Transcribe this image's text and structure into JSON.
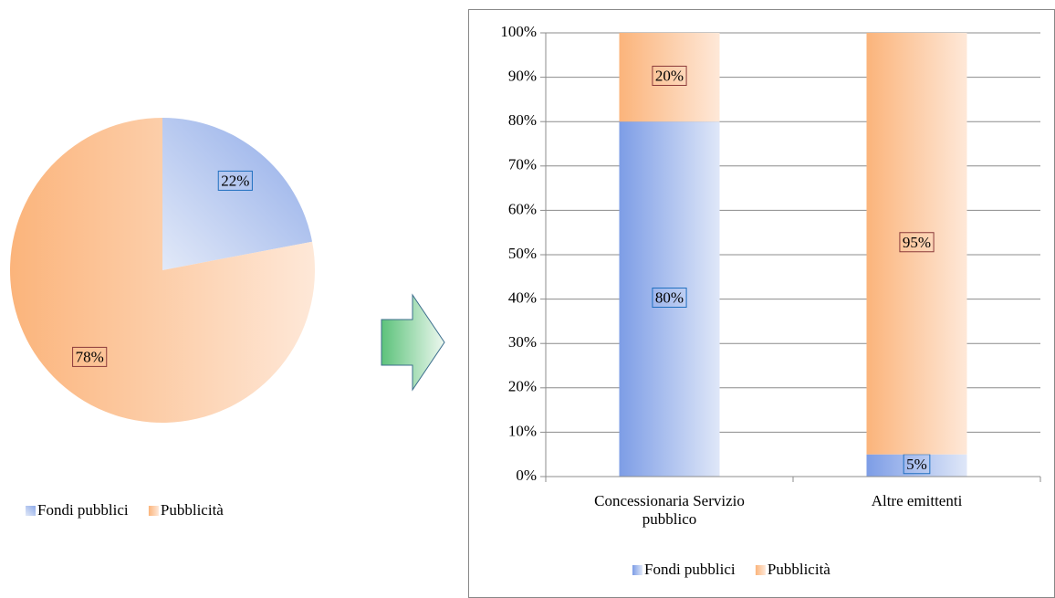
{
  "chart_data": [
    {
      "type": "pie",
      "categories": [
        "Fondi pubblici",
        "Pubblicità"
      ],
      "values": [
        22,
        78
      ],
      "value_labels": [
        "22%",
        "78%"
      ],
      "colors": [
        "#8eaae8",
        "#fbb98a"
      ],
      "legend": "bottom"
    },
    {
      "type": "stacked_bar",
      "categories": [
        "Concessionaria Servizio pubblico",
        "Altre emittenti"
      ],
      "series": [
        {
          "name": "Fondi pubblici",
          "color": "#8eaae8",
          "values": [
            80,
            5
          ],
          "value_labels": [
            "80%",
            "5%"
          ]
        },
        {
          "name": "Pubblicità",
          "color": "#fbb98a",
          "values": [
            20,
            95
          ],
          "value_labels": [
            "20%",
            "95%"
          ]
        }
      ],
      "ylim": [
        0,
        100
      ],
      "yticks": [
        {
          "value": 0,
          "label": "0%"
        },
        {
          "value": 10,
          "label": "10%"
        },
        {
          "value": 20,
          "label": "20%"
        },
        {
          "value": 30,
          "label": "30%"
        },
        {
          "value": 40,
          "label": "40%"
        },
        {
          "value": 50,
          "label": "50%"
        },
        {
          "value": 60,
          "label": "60%"
        },
        {
          "value": 70,
          "label": "70%"
        },
        {
          "value": 80,
          "label": "80%"
        },
        {
          "value": 90,
          "label": "90%"
        },
        {
          "value": 100,
          "label": "100%"
        }
      ],
      "grid": true,
      "legend": "bottom"
    }
  ]
}
